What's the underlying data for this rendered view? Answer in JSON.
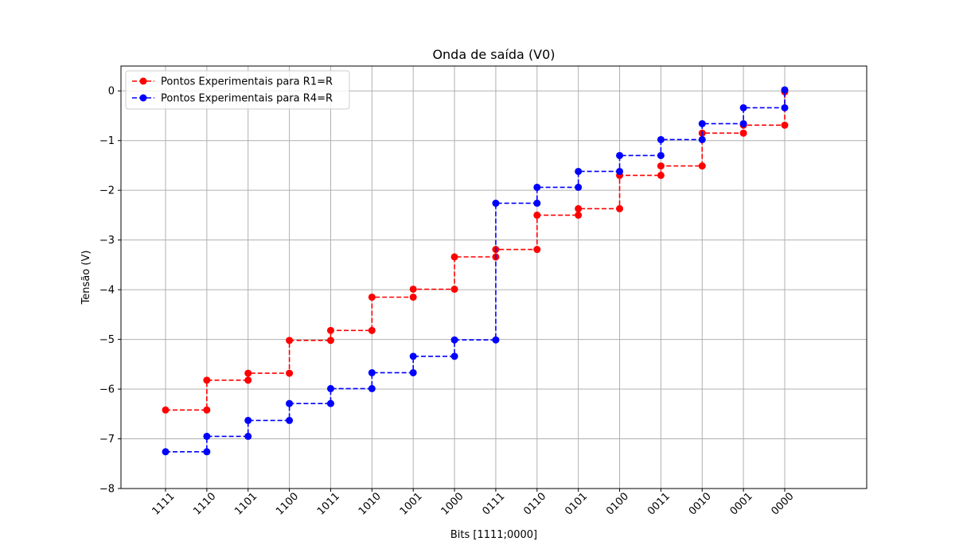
{
  "chart_data": {
    "type": "line",
    "title": "Onda de saída (V0)",
    "xlabel": "Bits [1111;0000]",
    "ylabel": "Tensão (V)",
    "categories": [
      "1111",
      "1110",
      "1101",
      "1100",
      "1011",
      "1010",
      "1001",
      "1000",
      "0111",
      "0110",
      "0101",
      "0100",
      "0011",
      "0010",
      "0001",
      "0000"
    ],
    "yticks": [
      0,
      -1,
      -2,
      -3,
      -4,
      -5,
      -6,
      -7,
      -8
    ],
    "ylim": [
      -8,
      0.5
    ],
    "grid": true,
    "legend_position": "top-left",
    "series": [
      {
        "name": "Pontos Experimentais para R1=R",
        "color": "#ff0000",
        "values": [
          -6.42,
          -5.82,
          -5.68,
          -5.02,
          -4.82,
          -4.15,
          -3.99,
          -3.34,
          -3.19,
          -2.5,
          -2.37,
          -1.7,
          -1.51,
          -0.85,
          -0.69,
          -0.02
        ]
      },
      {
        "name": "Pontos Experimentais para R4=R",
        "color": "#0000ff",
        "values": [
          -7.26,
          -6.95,
          -6.63,
          -6.29,
          -5.99,
          -5.67,
          -5.34,
          -5.01,
          -2.26,
          -1.94,
          -1.62,
          -1.3,
          -0.98,
          -0.66,
          -0.34,
          0.02
        ]
      }
    ]
  }
}
